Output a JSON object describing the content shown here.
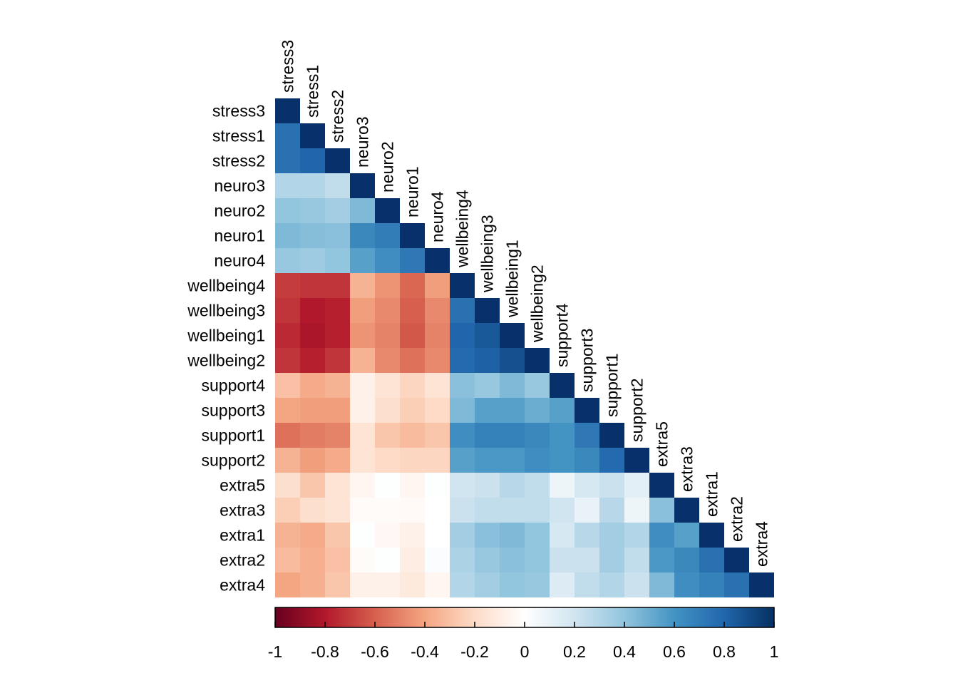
{
  "chart_data": {
    "type": "heatmap",
    "layout": "lower-triangle",
    "variables": [
      "stress3",
      "stress1",
      "stress2",
      "neuro3",
      "neuro2",
      "neuro1",
      "neuro4",
      "wellbeing4",
      "wellbeing3",
      "wellbeing1",
      "wellbeing2",
      "support4",
      "support3",
      "support1",
      "support2",
      "extra5",
      "extra3",
      "extra1",
      "extra2",
      "extra4"
    ],
    "values": [
      [
        1.0
      ],
      [
        0.75,
        1.0
      ],
      [
        0.75,
        0.8,
        1.0
      ],
      [
        0.3,
        0.3,
        0.25,
        1.0
      ],
      [
        0.4,
        0.38,
        0.35,
        0.45,
        1.0
      ],
      [
        0.45,
        0.43,
        0.42,
        0.65,
        0.7,
        1.0
      ],
      [
        0.38,
        0.36,
        0.4,
        0.55,
        0.62,
        0.72,
        1.0
      ],
      [
        -0.7,
        -0.72,
        -0.72,
        -0.35,
        -0.45,
        -0.58,
        -0.42,
        1.0
      ],
      [
        -0.72,
        -0.8,
        -0.78,
        -0.42,
        -0.48,
        -0.6,
        -0.48,
        0.75,
        1.0
      ],
      [
        -0.75,
        -0.82,
        -0.78,
        -0.45,
        -0.5,
        -0.62,
        -0.5,
        0.8,
        0.85,
        1.0
      ],
      [
        -0.72,
        -0.78,
        -0.72,
        -0.35,
        -0.48,
        -0.55,
        -0.48,
        0.78,
        0.82,
        0.88,
        1.0
      ],
      [
        -0.3,
        -0.38,
        -0.35,
        -0.08,
        -0.15,
        -0.22,
        -0.15,
        0.42,
        0.38,
        0.45,
        0.38,
        1.0
      ],
      [
        -0.4,
        -0.42,
        -0.42,
        -0.08,
        -0.18,
        -0.25,
        -0.2,
        0.45,
        0.55,
        0.55,
        0.5,
        0.55,
        1.0
      ],
      [
        -0.55,
        -0.52,
        -0.5,
        -0.15,
        -0.28,
        -0.32,
        -0.28,
        0.62,
        0.68,
        0.68,
        0.65,
        0.6,
        0.72,
        1.0
      ],
      [
        -0.35,
        -0.42,
        -0.38,
        -0.15,
        -0.2,
        -0.22,
        -0.22,
        0.55,
        0.58,
        0.58,
        0.62,
        0.6,
        0.65,
        0.78,
        1.0
      ],
      [
        -0.18,
        -0.28,
        -0.15,
        -0.05,
        0.01,
        -0.05,
        0.01,
        0.2,
        0.22,
        0.28,
        0.25,
        0.08,
        0.18,
        0.22,
        0.12,
        1.0
      ],
      [
        -0.25,
        -0.18,
        -0.15,
        -0.02,
        -0.02,
        -0.03,
        0.0,
        0.22,
        0.25,
        0.25,
        0.25,
        0.2,
        0.1,
        0.28,
        0.08,
        0.42,
        1.0
      ],
      [
        -0.35,
        -0.38,
        -0.28,
        0.01,
        -0.04,
        -0.08,
        0.0,
        0.35,
        0.42,
        0.45,
        0.4,
        0.18,
        0.28,
        0.35,
        0.3,
        0.62,
        0.55,
        1.0
      ],
      [
        -0.32,
        -0.36,
        -0.3,
        -0.02,
        0.01,
        -0.1,
        0.02,
        0.32,
        0.38,
        0.42,
        0.4,
        0.22,
        0.22,
        0.35,
        0.25,
        0.58,
        0.65,
        0.75,
        1.0
      ],
      [
        -0.4,
        -0.36,
        -0.28,
        -0.08,
        -0.08,
        -0.12,
        -0.05,
        0.3,
        0.35,
        0.4,
        0.38,
        0.15,
        0.25,
        0.3,
        0.22,
        0.45,
        0.62,
        0.68,
        0.75,
        1.0
      ]
    ],
    "colorbar": {
      "range": [
        -1,
        1
      ],
      "ticks": [
        "-1",
        "-0.8",
        "-0.6",
        "-0.4",
        "-0.2",
        "0",
        "0.2",
        "0.4",
        "0.6",
        "0.8",
        "1"
      ]
    },
    "colors": {
      "negative_end": "#67001F",
      "zero": "#FFFFFF",
      "positive_end": "#053061",
      "diagonal": "#08306B"
    }
  }
}
